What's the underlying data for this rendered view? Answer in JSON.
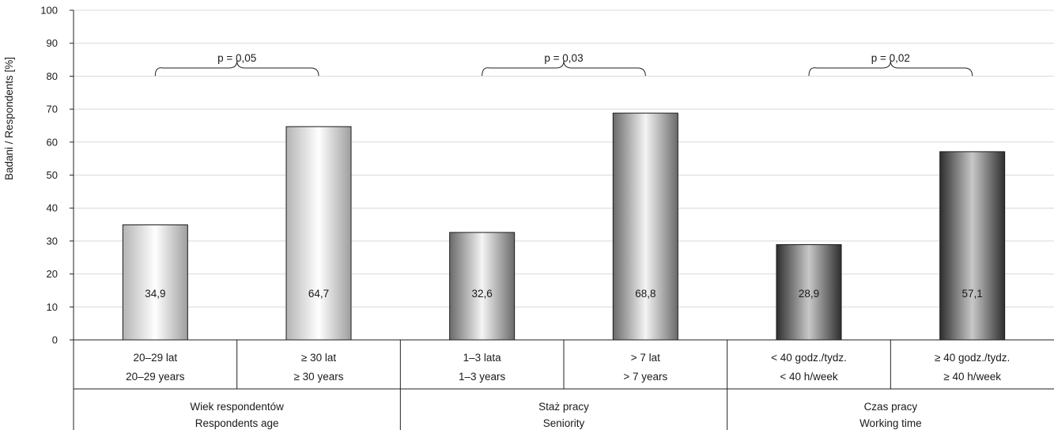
{
  "colors": {
    "group_1": "light-silver gradient",
    "group_2": "mid-grey gradient",
    "group_3": "dark-charcoal gradient"
  },
  "chart_data": {
    "type": "bar",
    "title": "",
    "ylabel": "Badani / Respondents [%]",
    "ylim": [
      0,
      100
    ],
    "yticks": [
      "0",
      "10",
      "20",
      "30",
      "40",
      "50",
      "60",
      "70",
      "80",
      "90",
      "100"
    ],
    "grid": "horizontal",
    "groups": [
      {
        "label_pl": "Wiek respondentów",
        "label_en": "Respondents age",
        "pvalue": "p = 0,05",
        "bars": [
          {
            "label_pl": "20–29 lat",
            "label_en": "20–29 years",
            "value": 34.9,
            "value_label": "34,9"
          },
          {
            "label_pl": "≥ 30 lat",
            "label_en": "≥ 30 years",
            "value": 64.7,
            "value_label": "64,7"
          }
        ]
      },
      {
        "label_pl": "Staż pracy",
        "label_en": "Seniority",
        "pvalue": "p = 0,03",
        "bars": [
          {
            "label_pl": "1–3 lata",
            "label_en": "1–3 years",
            "value": 32.6,
            "value_label": "32,6"
          },
          {
            "label_pl": "> 7 lat",
            "label_en": "> 7 years",
            "value": 68.8,
            "value_label": "68,8"
          }
        ]
      },
      {
        "label_pl": "Czas pracy",
        "label_en": "Working time",
        "pvalue": "p = 0,02",
        "bars": [
          {
            "label_pl": "< 40 godz./tydz.",
            "label_en": "< 40 h/week",
            "value": 28.9,
            "value_label": "28,9"
          },
          {
            "label_pl": "≥ 40 godz./tydz.",
            "label_en": "≥ 40 h/week",
            "value": 57.1,
            "value_label": "57,1"
          }
        ]
      }
    ]
  }
}
